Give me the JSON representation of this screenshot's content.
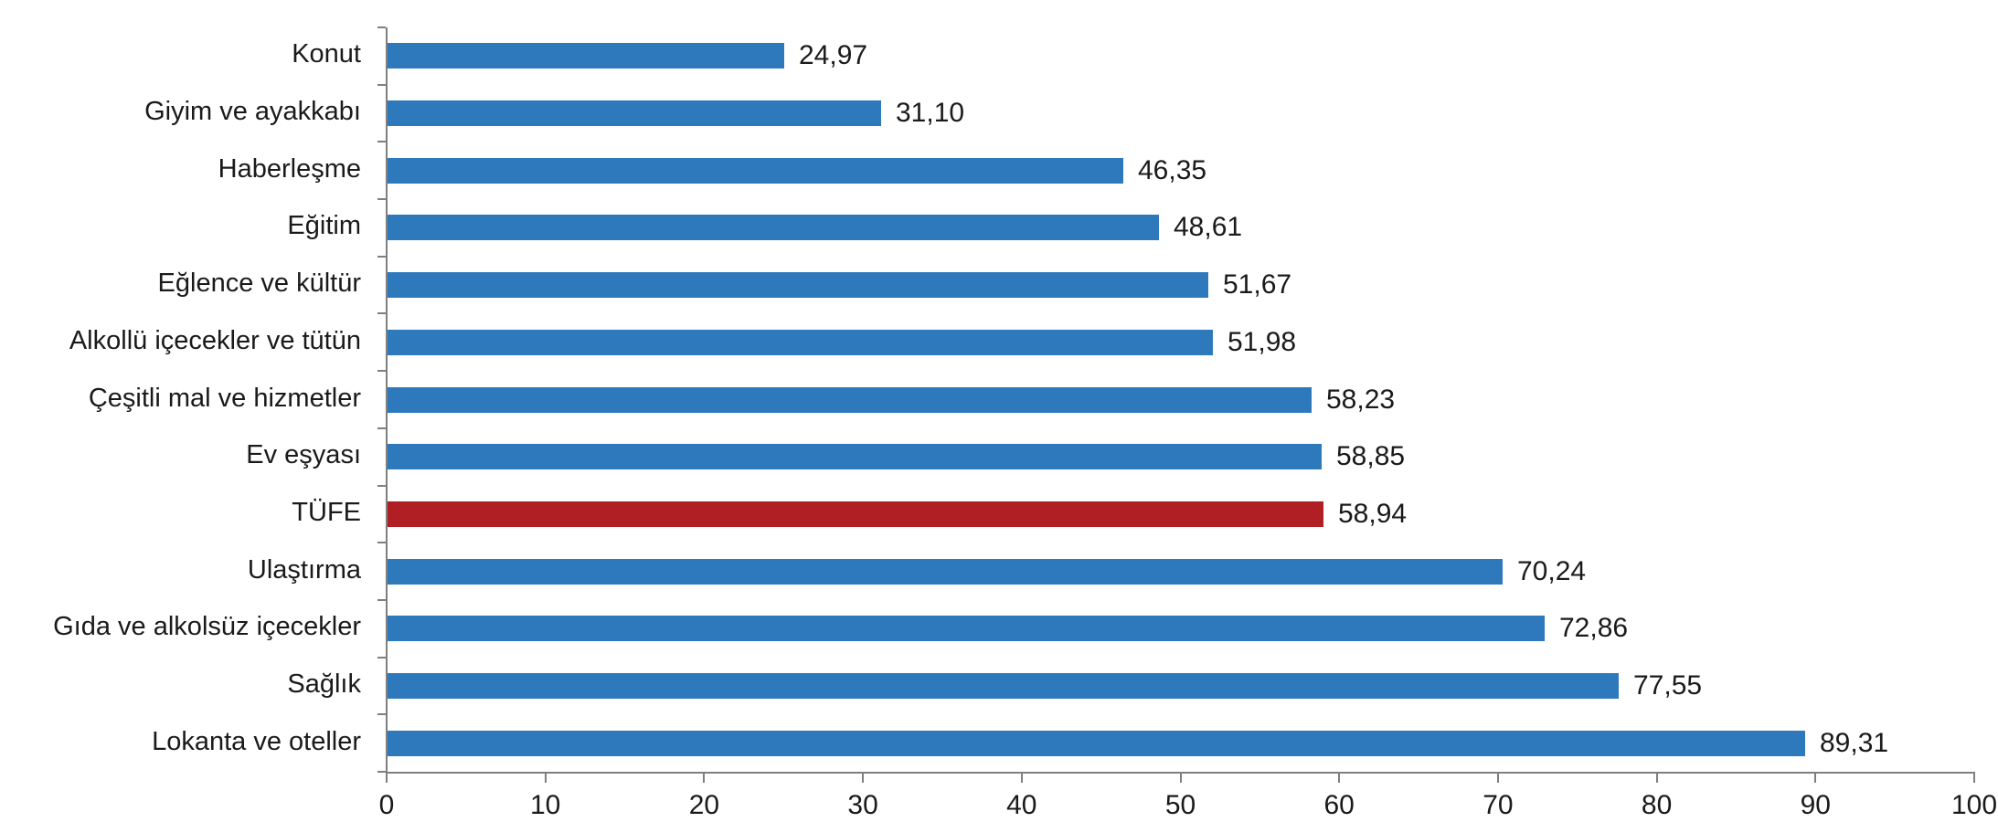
{
  "chart_data": {
    "type": "bar",
    "orientation": "horizontal",
    "title": "",
    "xlabel": "",
    "ylabel": "",
    "xlim": [
      0,
      100
    ],
    "x_ticks": [
      0,
      10,
      20,
      30,
      40,
      50,
      60,
      70,
      80,
      90,
      100
    ],
    "x_tick_labels": [
      "0",
      "10",
      "20",
      "30",
      "40",
      "50",
      "60",
      "70",
      "80",
      "90",
      "100"
    ],
    "grid": false,
    "legend": false,
    "decimal_separator": ",",
    "colors": {
      "bar_default": "#2e79bc",
      "bar_highlight": "#b01f23",
      "axis": "#7f7f7f",
      "text": "#1a1a1a"
    },
    "categories": [
      {
        "label": "Konut",
        "value": 24.97,
        "value_label": "24,97",
        "highlight": false
      },
      {
        "label": "Giyim ve ayakkabı",
        "value": 31.1,
        "value_label": "31,10",
        "highlight": false
      },
      {
        "label": "Haberleşme",
        "value": 46.35,
        "value_label": "46,35",
        "highlight": false
      },
      {
        "label": "Eğitim",
        "value": 48.61,
        "value_label": "48,61",
        "highlight": false
      },
      {
        "label": "Eğlence ve kültür",
        "value": 51.67,
        "value_label": "51,67",
        "highlight": false
      },
      {
        "label": "Alkollü içecekler ve tütün",
        "value": 51.98,
        "value_label": "51,98",
        "highlight": false
      },
      {
        "label": "Çeşitli mal ve hizmetler",
        "value": 58.23,
        "value_label": "58,23",
        "highlight": false
      },
      {
        "label": "Ev eşyası",
        "value": 58.85,
        "value_label": "58,85",
        "highlight": false
      },
      {
        "label": "TÜFE",
        "value": 58.94,
        "value_label": "58,94",
        "highlight": true
      },
      {
        "label": "Ulaştırma",
        "value": 70.24,
        "value_label": "70,24",
        "highlight": false
      },
      {
        "label": "Gıda ve alkolsüz içecekler",
        "value": 72.86,
        "value_label": "72,86",
        "highlight": false
      },
      {
        "label": "Sağlık",
        "value": 77.55,
        "value_label": "77,55",
        "highlight": false
      },
      {
        "label": "Lokanta ve oteller",
        "value": 89.31,
        "value_label": "89,31",
        "highlight": false
      }
    ]
  }
}
